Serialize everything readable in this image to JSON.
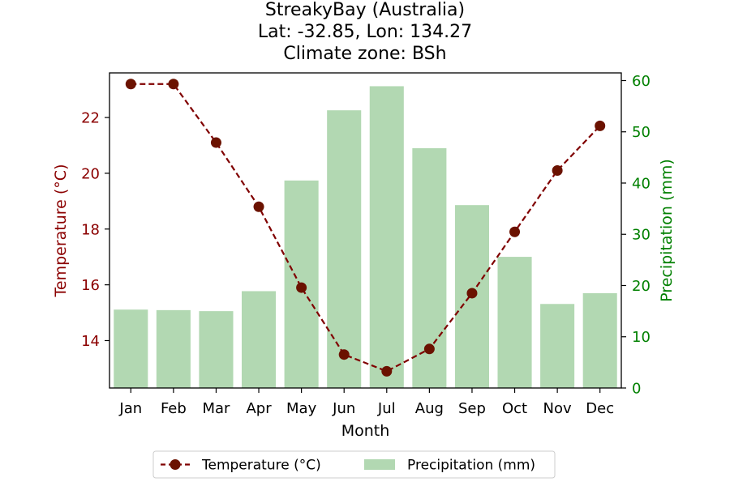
{
  "title_lines": [
    "StreakyBay (Australia)",
    "Lat: -32.85, Lon: 134.27",
    "Climate zone: BSh"
  ],
  "chart_data": {
    "type": "bar",
    "categories": [
      "Jan",
      "Feb",
      "Mar",
      "Apr",
      "May",
      "Jun",
      "Jul",
      "Aug",
      "Sep",
      "Oct",
      "Nov",
      "Dec"
    ],
    "xlabel": "Month",
    "series": [
      {
        "name": "Temperature (°C)",
        "kind": "line",
        "axis": "left",
        "values": [
          23.2,
          23.2,
          21.1,
          18.8,
          15.9,
          13.5,
          12.9,
          13.7,
          15.7,
          17.9,
          20.1,
          21.7
        ]
      },
      {
        "name": "Precipitation (mm)",
        "kind": "bar",
        "axis": "right",
        "values": [
          15.3,
          15.2,
          15.0,
          18.9,
          40.5,
          54.2,
          58.9,
          46.8,
          35.7,
          25.6,
          16.4,
          18.5
        ]
      }
    ],
    "ylabel_left": "Temperature (°C)",
    "ylabel_right": "Precipitation (mm)",
    "ylim_left": [
      12.3,
      23.6
    ],
    "ylim_right": [
      0,
      61.5
    ],
    "yticks_left": [
      14,
      16,
      18,
      20,
      22
    ],
    "yticks_right": [
      0,
      10,
      20,
      30,
      40,
      50,
      60
    ],
    "colors": {
      "temperature": "#800000",
      "temperature_marker": "#6b1200",
      "precipitation": "#b2d8b2",
      "left_axis_text": "#8b0000",
      "right_axis_text": "#008000"
    },
    "grid": false,
    "legend_position": "bottom-center"
  }
}
